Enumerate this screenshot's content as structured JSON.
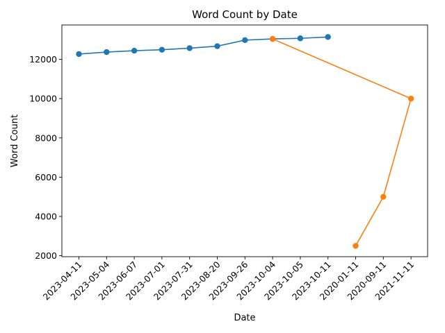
{
  "chart_data": {
    "type": "line",
    "title": "Word Count by Date",
    "xlabel": "Date",
    "ylabel": "Word Count",
    "categories": [
      "2023-04-11",
      "2023-05-04",
      "2023-06-07",
      "2023-07-01",
      "2023-07-31",
      "2023-08-20",
      "2023-09-26",
      "2023-10-04",
      "2023-10-05",
      "2023-10-11",
      "2020-01-11",
      "2020-09-11",
      "2021-11-11"
    ],
    "yticks": [
      2000,
      4000,
      6000,
      8000,
      10000,
      12000
    ],
    "ylim": [
      1950,
      13750
    ],
    "grid": false,
    "series": [
      {
        "color": "#1f77b4",
        "points": [
          {
            "x": "2023-04-11",
            "y": 12270
          },
          {
            "x": "2023-05-04",
            "y": 12370
          },
          {
            "x": "2023-06-07",
            "y": 12440
          },
          {
            "x": "2023-07-01",
            "y": 12490
          },
          {
            "x": "2023-07-31",
            "y": 12570
          },
          {
            "x": "2023-08-20",
            "y": 12670
          },
          {
            "x": "2023-09-26",
            "y": 12980
          },
          {
            "x": "2023-10-04",
            "y": 13040
          },
          {
            "x": "2023-10-05",
            "y": 13070
          },
          {
            "x": "2023-10-11",
            "y": 13140
          }
        ]
      },
      {
        "color": "#ff7f0e",
        "points": [
          {
            "x": "2023-10-04",
            "y": 13040
          },
          {
            "x": "2021-11-11",
            "y": 10000
          },
          {
            "x": "2020-09-11",
            "y": 5000
          },
          {
            "x": "2020-01-11",
            "y": 2500
          }
        ]
      }
    ]
  }
}
